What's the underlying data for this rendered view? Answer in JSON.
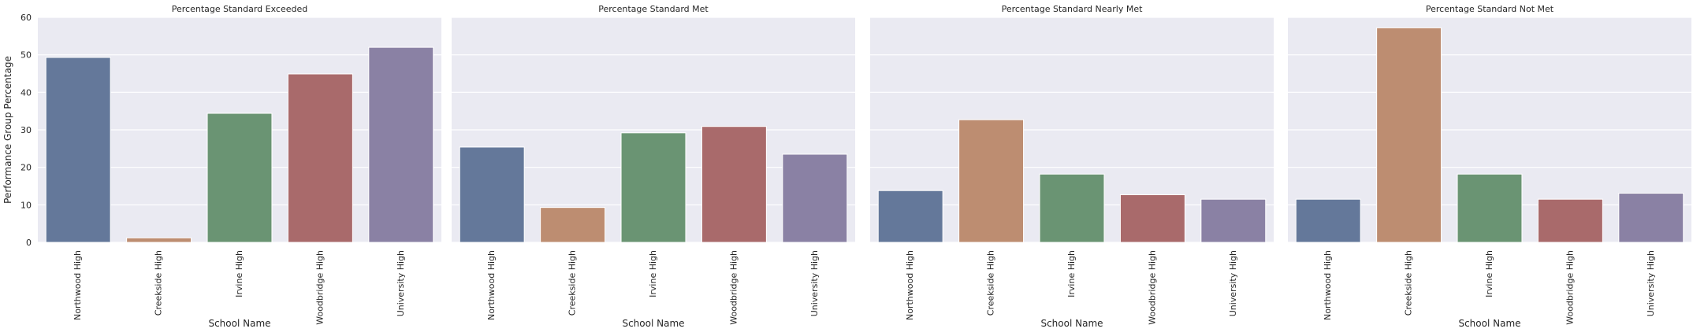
{
  "figure": {
    "ylabel": "Performance Group Percentage",
    "xlabel": "School Name"
  },
  "chart_data": [
    {
      "type": "bar",
      "title": "Percentage Standard Exceeded",
      "xlabel": "School Name",
      "ylabel": "Performance Group Percentage",
      "categories": [
        "Northwood High",
        "Creekside High",
        "Irvine High",
        "Woodbridge High",
        "University High"
      ],
      "values": [
        49.3,
        1.2,
        34.4,
        44.9,
        52.0
      ],
      "ylim": [
        0,
        60
      ],
      "yticks": [
        0,
        10,
        20,
        30,
        40,
        50,
        60
      ],
      "grid": true,
      "colors": [
        "#64789a",
        "#bd8d71",
        "#6a9473",
        "#a96a6b",
        "#8a81a4"
      ]
    },
    {
      "type": "bar",
      "title": "Percentage Standard Met",
      "xlabel": "School Name",
      "categories": [
        "Northwood High",
        "Creekside High",
        "Irvine High",
        "Woodbridge High",
        "University High"
      ],
      "values": [
        25.4,
        9.3,
        29.2,
        30.9,
        23.5
      ],
      "ylim": [
        0,
        60
      ],
      "grid": true,
      "colors": [
        "#64789a",
        "#bd8d71",
        "#6a9473",
        "#a96a6b",
        "#8a81a4"
      ]
    },
    {
      "type": "bar",
      "title": "Percentage Standard Nearly Met",
      "xlabel": "School Name",
      "categories": [
        "Northwood High",
        "Creekside High",
        "Irvine High",
        "Woodbridge High",
        "University High"
      ],
      "values": [
        13.8,
        32.7,
        18.2,
        12.7,
        11.5
      ],
      "ylim": [
        0,
        60
      ],
      "grid": true,
      "colors": [
        "#64789a",
        "#bd8d71",
        "#6a9473",
        "#a96a6b",
        "#8a81a4"
      ]
    },
    {
      "type": "bar",
      "title": "Percentage Standard Not Met",
      "xlabel": "School Name",
      "categories": [
        "Northwood High",
        "Creekside High",
        "Irvine High",
        "Woodbridge High",
        "University High"
      ],
      "values": [
        11.5,
        57.2,
        18.2,
        11.5,
        13.1
      ],
      "ylim": [
        0,
        60
      ],
      "grid": true,
      "colors": [
        "#64789a",
        "#bd8d71",
        "#6a9473",
        "#a96a6b",
        "#8a81a4"
      ]
    }
  ]
}
